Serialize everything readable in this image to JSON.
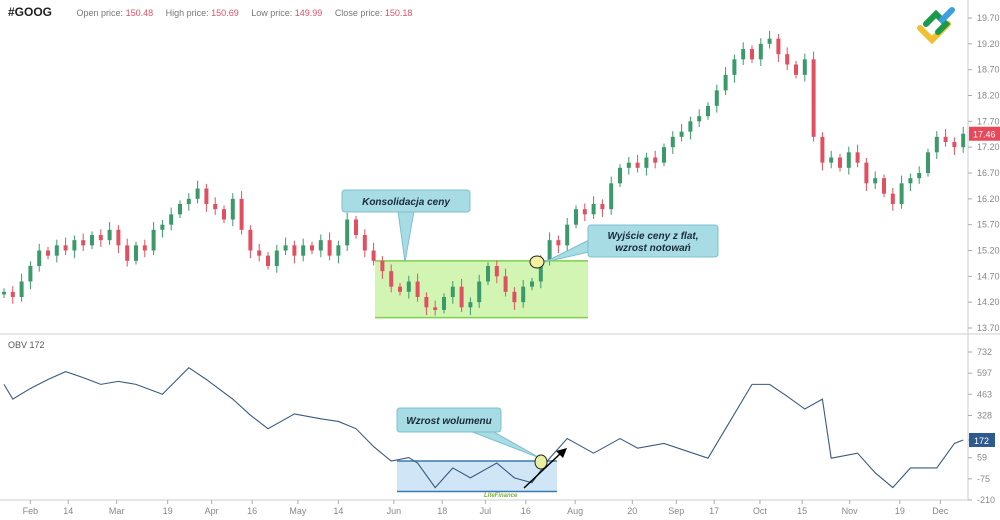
{
  "header": {
    "symbol": "#GOOG",
    "open_label": "Open price:",
    "open_value": "150.48",
    "high_label": "High price:",
    "high_value": "150.69",
    "low_label": "Low price:",
    "low_value": "149.99",
    "close_label": "Close price:",
    "close_value": "150.18"
  },
  "colors": {
    "up": "#3a9a6a",
    "down": "#e05060",
    "obv_line": "#3a5a80",
    "price_box": "#c8f2a0",
    "price_box_border": "#7ed04a",
    "obv_box": "#c8e0f5",
    "obv_box_border": "#3a7ab0",
    "callout": "#a8dce4",
    "last_price_badge": "#e8485a",
    "obv_badge": "#2f5a90"
  },
  "chart_data": [
    {
      "type": "candlestick",
      "title": "#GOOG",
      "y_ticks": [
        "19.70",
        "19.20",
        "18.70",
        "18.20",
        "17.70",
        "17.20",
        "16.70",
        "16.20",
        "15.70",
        "15.20",
        "14.70",
        "14.20",
        "13.70"
      ],
      "ylim": [
        13.7,
        19.7
      ],
      "last_price": "17.46",
      "closes": [
        14.4,
        14.3,
        14.6,
        14.9,
        15.2,
        15.1,
        15.3,
        15.2,
        15.4,
        15.3,
        15.5,
        15.4,
        15.6,
        15.3,
        15.0,
        15.3,
        15.2,
        15.6,
        15.7,
        15.9,
        16.1,
        16.2,
        16.4,
        16.1,
        16.0,
        15.8,
        16.2,
        15.6,
        15.2,
        15.1,
        14.9,
        15.2,
        15.3,
        15.1,
        15.3,
        15.2,
        15.4,
        15.1,
        15.3,
        15.8,
        15.5,
        15.2,
        15.0,
        14.8,
        14.5,
        14.4,
        14.6,
        14.3,
        14.1,
        14.05,
        14.3,
        14.5,
        14.1,
        14.2,
        14.6,
        14.9,
        14.7,
        14.4,
        14.2,
        14.5,
        14.6,
        15.0,
        15.4,
        15.3,
        15.7,
        16.0,
        15.9,
        16.1,
        16.0,
        16.5,
        16.8,
        16.9,
        16.8,
        17.0,
        16.9,
        17.2,
        17.4,
        17.5,
        17.7,
        17.8,
        18.0,
        18.3,
        18.6,
        18.9,
        19.1,
        18.9,
        19.2,
        19.3,
        19.0,
        18.8,
        18.6,
        18.9,
        17.4,
        16.9,
        17.0,
        16.8,
        17.1,
        16.9,
        16.5,
        16.6,
        16.3,
        16.1,
        16.5,
        16.6,
        16.7,
        17.1,
        17.4,
        17.3,
        17.2,
        17.46
      ],
      "consolidation_range": [
        13.9,
        15.0
      ],
      "annotations": [
        {
          "text": "Konsolidacja ceny"
        },
        {
          "text": "Wyjście ceny z flat,",
          "text2": "wzrost notowań"
        }
      ]
    },
    {
      "type": "line",
      "title": "OBV 172",
      "y_ticks": [
        "732",
        "597",
        "463",
        "328",
        "172",
        "59",
        "-75",
        "-210"
      ],
      "ylim": [
        -210,
        732
      ],
      "last_value": "172",
      "points": [
        [
          0,
          526
        ],
        [
          1,
          432
        ],
        [
          3,
          500
        ],
        [
          5,
          557
        ],
        [
          7,
          607
        ],
        [
          9,
          569
        ],
        [
          11,
          526
        ],
        [
          13,
          545
        ],
        [
          15,
          526
        ],
        [
          18,
          463
        ],
        [
          21,
          632
        ],
        [
          23,
          557
        ],
        [
          26,
          432
        ],
        [
          28,
          330
        ],
        [
          30,
          244
        ],
        [
          33,
          338
        ],
        [
          36,
          307
        ],
        [
          38,
          290
        ],
        [
          40,
          244
        ],
        [
          42,
          130
        ],
        [
          44,
          38
        ],
        [
          46,
          60
        ],
        [
          47,
          25
        ],
        [
          49,
          -131
        ],
        [
          51,
          -6
        ],
        [
          53,
          -69
        ],
        [
          56,
          25
        ],
        [
          58,
          -69
        ],
        [
          60,
          -100
        ],
        [
          62,
          56
        ],
        [
          64,
          181
        ],
        [
          67,
          88
        ],
        [
          70,
          181
        ],
        [
          72,
          120
        ],
        [
          75,
          150
        ],
        [
          80,
          56
        ],
        [
          82,
          244
        ],
        [
          85,
          526
        ],
        [
          87,
          526
        ],
        [
          89,
          450
        ],
        [
          91,
          369
        ],
        [
          93,
          432
        ],
        [
          94,
          56
        ],
        [
          97,
          88
        ],
        [
          99,
          -37
        ],
        [
          101,
          -131
        ],
        [
          103,
          -6
        ],
        [
          106,
          -6
        ],
        [
          108,
          150
        ],
        [
          109,
          172
        ]
      ],
      "consolidation_range": [
        -156,
        38
      ],
      "annotations": [
        {
          "text": "Wzrost wolumenu"
        }
      ]
    }
  ],
  "x_ticks": [
    {
      "label": "Feb",
      "day": 3
    },
    {
      "label": "14",
      "day": 7.3
    },
    {
      "label": "Mar",
      "day": 12.8
    },
    {
      "label": "19",
      "day": 18.6
    },
    {
      "label": "Apr",
      "day": 23.6
    },
    {
      "label": "16",
      "day": 28.2
    },
    {
      "label": "May",
      "day": 33.4
    },
    {
      "label": "14",
      "day": 38
    },
    {
      "label": "Jun",
      "day": 44.3
    },
    {
      "label": "18",
      "day": 49.8
    },
    {
      "label": "Jul",
      "day": 54.7
    },
    {
      "label": "16",
      "day": 59.3
    },
    {
      "label": "Aug",
      "day": 64.9
    },
    {
      "label": "20",
      "day": 71.4
    },
    {
      "label": "Sep",
      "day": 76.4
    },
    {
      "label": "17",
      "day": 80.7
    },
    {
      "label": "Oct",
      "day": 85.9
    },
    {
      "label": "15",
      "day": 90.7
    },
    {
      "label": "Nov",
      "day": 96.1
    },
    {
      "label": "19",
      "day": 101.8
    },
    {
      "label": "Dec",
      "day": 106.4
    }
  ],
  "watermark": "LiteFinance"
}
